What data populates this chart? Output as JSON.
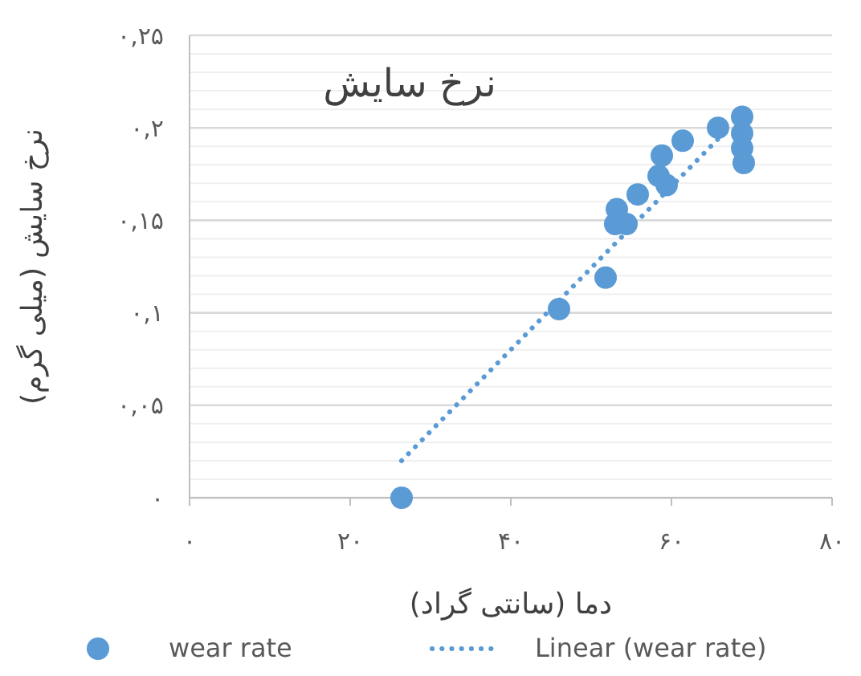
{
  "chart_data": {
    "type": "scatter",
    "title": "نرخ سایش",
    "xlabel": "دما (سانتی گراد)",
    "ylabel": "نرخ سایش (میلی گرم)",
    "xlim": [
      0,
      80
    ],
    "ylim": [
      0,
      0.25
    ],
    "xticks": [
      {
        "value": 0,
        "label": "۰"
      },
      {
        "value": 20,
        "label": "۲۰"
      },
      {
        "value": 40,
        "label": "۴۰"
      },
      {
        "value": 60,
        "label": "۶۰"
      },
      {
        "value": 80,
        "label": "۸۰"
      }
    ],
    "yticks": [
      {
        "value": 0,
        "label": "۰"
      },
      {
        "value": 0.01,
        "label": null
      },
      {
        "value": 0.02,
        "label": null
      },
      {
        "value": 0.03,
        "label": null
      },
      {
        "value": 0.04,
        "label": null
      },
      {
        "value": 0.05,
        "label": "۰,۰۵"
      },
      {
        "value": 0.06,
        "label": null
      },
      {
        "value": 0.07,
        "label": null
      },
      {
        "value": 0.08,
        "label": null
      },
      {
        "value": 0.09,
        "label": null
      },
      {
        "value": 0.1,
        "label": "۰,۱"
      },
      {
        "value": 0.11,
        "label": null
      },
      {
        "value": 0.12,
        "label": null
      },
      {
        "value": 0.13,
        "label": null
      },
      {
        "value": 0.14,
        "label": null
      },
      {
        "value": 0.15,
        "label": "۰,۱۵"
      },
      {
        "value": 0.16,
        "label": null
      },
      {
        "value": 0.17,
        "label": null
      },
      {
        "value": 0.18,
        "label": null
      },
      {
        "value": 0.19,
        "label": null
      },
      {
        "value": 0.2,
        "label": "۰,۲"
      },
      {
        "value": 0.21,
        "label": null
      },
      {
        "value": 0.22,
        "label": null
      },
      {
        "value": 0.23,
        "label": null
      },
      {
        "value": 0.24,
        "label": null
      },
      {
        "value": 0.25,
        "label": "۰,۲۵"
      }
    ],
    "grid": "y",
    "legend": "bottom",
    "series": [
      {
        "name": "wear rate",
        "color": "#5b9bd5",
        "marker": "circle",
        "x": [
          26.4,
          46,
          51.8,
          53,
          53.2,
          54.4,
          55.8,
          58.4,
          58.8,
          59.4,
          61.4,
          65.8,
          68.8,
          68.8,
          68.8,
          69
        ],
        "values": [
          0,
          0.102,
          0.119,
          0.148,
          0.156,
          0.148,
          0.164,
          0.174,
          0.185,
          0.169,
          0.193,
          0.2,
          0.206,
          0.197,
          0.189,
          0.181
        ]
      },
      {
        "name": "Linear (wear rate)",
        "type": "line",
        "color": "#5b9bd5",
        "line_style": "dotted",
        "x": [
          26.4,
          67.4
        ],
        "values": [
          0.02,
          0.201
        ]
      }
    ]
  }
}
